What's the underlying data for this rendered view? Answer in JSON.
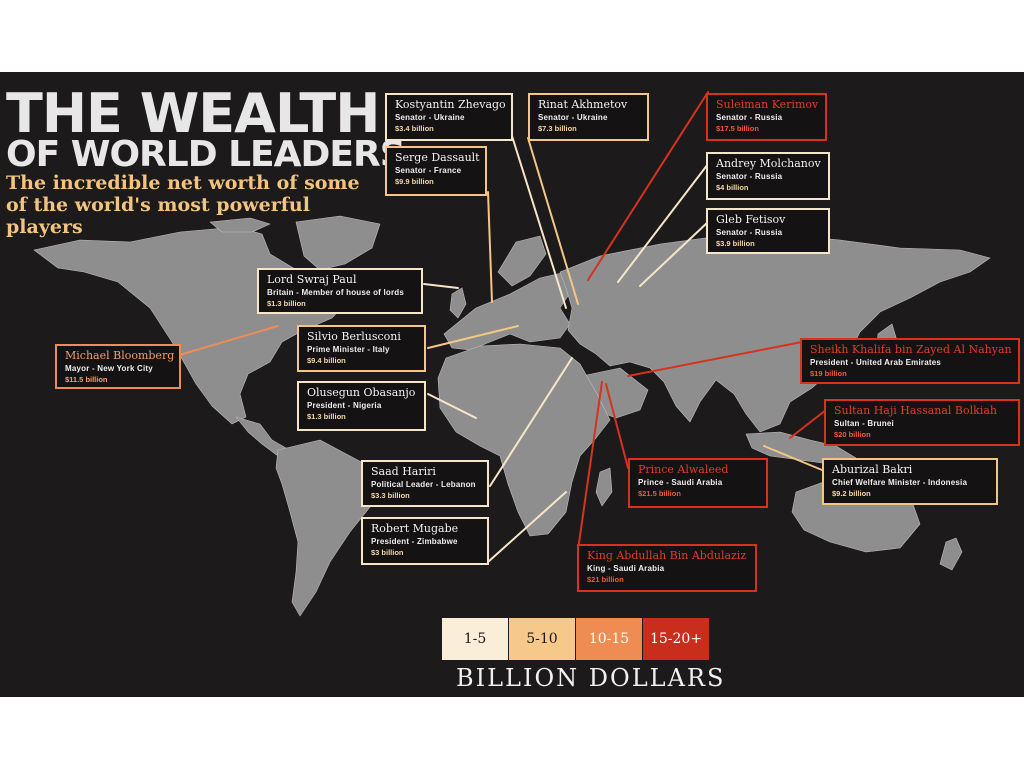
{
  "title_line1": "THE WEALTH",
  "title_line2": "OF WORLD LEADERS",
  "subtitle": "The incredible net worth of some of the world's most powerful players",
  "colors": {
    "background": "#1c1a1a",
    "land": "#8e8e8e",
    "tier_1_5": "#fbeed8",
    "tier_5_10": "#f6c98a",
    "tier_10_15": "#ee8c54",
    "tier_15_20": "#c92d1b"
  },
  "legend": {
    "tiers": [
      "1-5",
      "5-10",
      "10-15",
      "15-20+"
    ],
    "label": "BILLION DOLLARS"
  },
  "leaders": [
    {
      "name": "Kostyantin Zhevago",
      "title": "Senator - Ukraine",
      "worth": "$3.4 billion",
      "worth_billion": 3.4
    },
    {
      "name": "Rinat Akhmetov",
      "title": "Senator - Ukraine",
      "worth": "$7.3 billion",
      "worth_billion": 7.3
    },
    {
      "name": "Suleiman Kerimov",
      "title": "Senator - Russia",
      "worth": "$17.5 billion",
      "worth_billion": 17.5
    },
    {
      "name": "Serge Dassault",
      "title": "Senator - France",
      "worth": "$9.9 billion",
      "worth_billion": 9.9
    },
    {
      "name": "Andrey Molchanov",
      "title": "Senator - Russia",
      "worth": "$4 billion",
      "worth_billion": 4
    },
    {
      "name": "Gleb Fetisov",
      "title": "Senator - Russia",
      "worth": "$3.9 billion",
      "worth_billion": 3.9
    },
    {
      "name": "Lord Swraj Paul",
      "title": "Britain - Member of house of lords",
      "worth": "$1.3 billion",
      "worth_billion": 1.3
    },
    {
      "name": "Michael Bloomberg",
      "title": "Mayor - New York City",
      "worth": "$11.5 billion",
      "worth_billion": 11.5
    },
    {
      "name": "Silvio Berlusconi",
      "title": "Prime Minister - Italy",
      "worth": "$9.4 billion",
      "worth_billion": 9.4
    },
    {
      "name": "Olusegun Obasanjo",
      "title": "President - Nigeria",
      "worth": "$1.3 billion",
      "worth_billion": 1.3
    },
    {
      "name": "Sheikh Khalifa bin Zayed Al Nahyan",
      "title": "President - United Arab Emirates",
      "worth": "$19 billion",
      "worth_billion": 19
    },
    {
      "name": "Sultan Haji Hassanal Bolkiah",
      "title": "Sultan - Brunei",
      "worth": "$20 billion",
      "worth_billion": 20
    },
    {
      "name": "Aburizal Bakri",
      "title": "Chief Welfare Minister - Indonesia",
      "worth": "$9.2 billion",
      "worth_billion": 9.2
    },
    {
      "name": "Saad Hariri",
      "title": "Political Leader - Lebanon",
      "worth": "$3.3 billion",
      "worth_billion": 3.3
    },
    {
      "name": "Prince Alwaleed",
      "title": "Prince - Saudi Arabia",
      "worth": "$21.5 billion",
      "worth_billion": 21.5
    },
    {
      "name": "Robert Mugabe",
      "title": "President - Zimbabwe",
      "worth": "$3 billion",
      "worth_billion": 3
    },
    {
      "name": "King Abdullah Bin Abdulaziz",
      "title": "King - Saudi Arabia",
      "worth": "$21 billion",
      "worth_billion": 21
    }
  ]
}
